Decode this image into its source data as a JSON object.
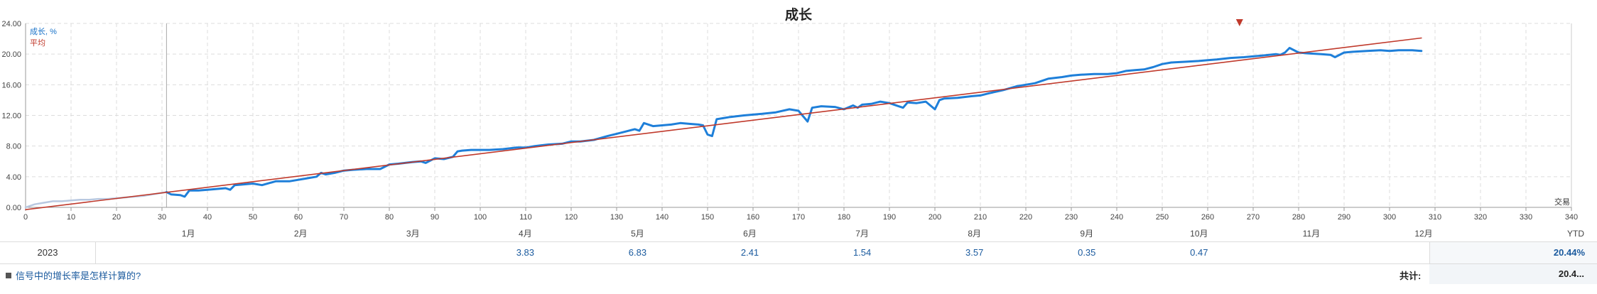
{
  "page": {
    "title": "成长"
  },
  "legend": {
    "growth": "成长, %",
    "average": "平均"
  },
  "x_axis_name": "交易",
  "chart_data": {
    "type": "line",
    "title": "成长",
    "xlabel": "交易",
    "ylabel": "",
    "xlim": [
      0,
      340
    ],
    "ylim": [
      0,
      24
    ],
    "x_ticks": [
      0,
      10,
      20,
      30,
      40,
      50,
      60,
      70,
      80,
      90,
      100,
      110,
      120,
      130,
      140,
      150,
      160,
      170,
      180,
      190,
      200,
      210,
      220,
      230,
      240,
      250,
      260,
      270,
      280,
      290,
      300,
      310,
      320,
      330,
      340
    ],
    "y_ticks": [
      "0.00",
      "4.00",
      "8.00",
      "12.00",
      "16.00",
      "20.00",
      "24.00"
    ],
    "y_tick_values": [
      0,
      4,
      8,
      12,
      16,
      20,
      24
    ],
    "grid": true,
    "legend_position": "top-left",
    "colors": {
      "growth": "#1e7fd9",
      "average": "#c0392b",
      "prehistory": "#b8c8e0",
      "marker": "#c0392b"
    },
    "series": [
      {
        "name": "成长, %",
        "role": "prehistory",
        "x": [
          0,
          2,
          4,
          6,
          8,
          10,
          12,
          14,
          16,
          18,
          20,
          22,
          24,
          26,
          28,
          30,
          31
        ],
        "y": [
          0,
          0.4,
          0.6,
          0.8,
          0.8,
          0.9,
          1.0,
          1.0,
          1.1,
          1.1,
          1.2,
          1.3,
          1.4,
          1.5,
          1.7,
          1.9,
          2.0
        ]
      },
      {
        "name": "成长, %",
        "role": "main",
        "x": [
          31,
          32,
          34,
          35,
          36,
          38,
          40,
          42,
          44,
          45,
          46,
          48,
          50,
          52,
          55,
          58,
          60,
          62,
          64,
          65,
          66,
          68,
          70,
          72,
          75,
          78,
          80,
          82,
          85,
          87,
          88,
          90,
          92,
          94,
          95,
          96,
          98,
          100,
          102,
          105,
          108,
          110,
          112,
          115,
          118,
          120,
          122,
          125,
          128,
          130,
          132,
          134,
          135,
          136,
          138,
          140,
          142,
          144,
          146,
          148,
          149,
          150,
          151,
          152,
          155,
          158,
          160,
          162,
          165,
          168,
          170,
          172,
          173,
          175,
          178,
          180,
          182,
          183,
          184,
          186,
          188,
          190,
          192,
          193,
          194,
          196,
          198,
          200,
          201,
          202,
          205,
          208,
          210,
          212,
          215,
          218,
          220,
          222,
          225,
          228,
          230,
          232,
          235,
          238,
          240,
          242,
          244,
          246,
          248,
          250,
          252,
          255,
          258,
          260,
          262,
          265,
          268,
          270,
          272,
          275,
          276,
          277,
          278,
          280,
          282,
          285,
          287,
          288,
          290,
          292,
          295,
          298,
          300,
          302,
          305,
          307
        ],
        "y": [
          2.0,
          1.7,
          1.6,
          1.4,
          2.2,
          2.2,
          2.3,
          2.4,
          2.5,
          2.3,
          2.9,
          3.0,
          3.1,
          2.9,
          3.4,
          3.4,
          3.6,
          3.8,
          4.0,
          4.5,
          4.3,
          4.5,
          4.8,
          4.9,
          5.0,
          5.0,
          5.6,
          5.7,
          5.9,
          6.0,
          5.8,
          6.4,
          6.3,
          6.6,
          7.3,
          7.4,
          7.5,
          7.5,
          7.5,
          7.6,
          7.8,
          7.8,
          8.0,
          8.2,
          8.3,
          8.6,
          8.6,
          8.8,
          9.3,
          9.6,
          9.9,
          10.2,
          10.0,
          11.0,
          10.6,
          10.7,
          10.8,
          11.0,
          10.9,
          10.8,
          10.7,
          9.5,
          9.3,
          11.5,
          11.8,
          12.0,
          12.1,
          12.2,
          12.4,
          12.8,
          12.6,
          11.2,
          13.0,
          13.2,
          13.1,
          12.8,
          13.3,
          13.0,
          13.4,
          13.5,
          13.8,
          13.6,
          13.2,
          13.0,
          13.7,
          13.6,
          13.8,
          12.8,
          14.0,
          14.2,
          14.3,
          14.5,
          14.6,
          14.9,
          15.3,
          15.8,
          16.0,
          16.2,
          16.8,
          17.0,
          17.2,
          17.3,
          17.4,
          17.4,
          17.5,
          17.8,
          17.9,
          18.0,
          18.3,
          18.7,
          18.9,
          19.0,
          19.1,
          19.2,
          19.3,
          19.5,
          19.6,
          19.7,
          19.8,
          20.0,
          19.9,
          20.2,
          20.8,
          20.2,
          20.1,
          20.0,
          19.9,
          19.6,
          20.2,
          20.3,
          20.4,
          20.5,
          20.4,
          20.5,
          20.5,
          20.4
        ]
      },
      {
        "name": "平均",
        "role": "average",
        "x": [
          0,
          307
        ],
        "y": [
          -0.3,
          22.1
        ]
      }
    ],
    "marker": {
      "x": 267,
      "y": 24
    }
  },
  "months": [
    {
      "label": "1月",
      "x": 35.8
    },
    {
      "label": "2月",
      "x": 60.5
    },
    {
      "label": "3月",
      "x": 85.2
    },
    {
      "label": "4月",
      "x": 109.9
    },
    {
      "label": "5月",
      "x": 134.6
    },
    {
      "label": "6月",
      "x": 159.3
    },
    {
      "label": "7月",
      "x": 184.0
    },
    {
      "label": "8月",
      "x": 208.7
    },
    {
      "label": "9月",
      "x": 233.4
    },
    {
      "label": "10月",
      "x": 258.1
    },
    {
      "label": "11月",
      "x": 282.8
    },
    {
      "label": "12月",
      "x": 307.5
    }
  ],
  "ytd_header": "YTD",
  "year_row": {
    "year": "2023",
    "values": [
      {
        "month": "4月",
        "value": "3.83",
        "x": 109.9
      },
      {
        "month": "5月",
        "value": "6.83",
        "x": 134.6
      },
      {
        "month": "6月",
        "value": "2.41",
        "x": 159.3
      },
      {
        "month": "7月",
        "value": "1.54",
        "x": 184.0
      },
      {
        "month": "8月",
        "value": "3.57",
        "x": 208.7
      },
      {
        "month": "9月",
        "value": "0.35",
        "x": 233.4
      },
      {
        "month": "10月",
        "value": "0.47",
        "x": 258.1
      }
    ],
    "ytd": "20.44%"
  },
  "footer": {
    "faq": "信号中的增长率是怎样计算的?",
    "total_label": "共计:",
    "total_value": "20.4..."
  }
}
